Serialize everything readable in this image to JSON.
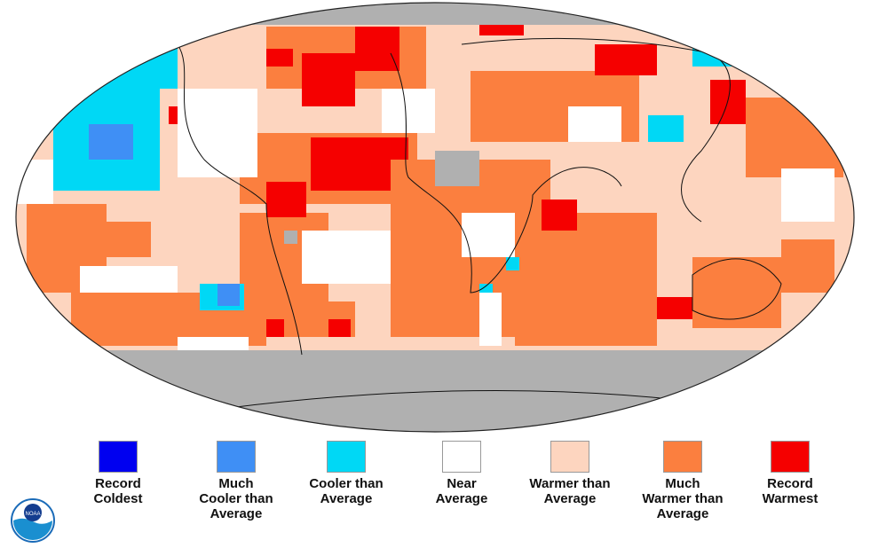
{
  "colors": {
    "record_coldest": "#0000f0",
    "much_cooler": "#3f8ff5",
    "cooler": "#00d8f5",
    "near": "#ffffff",
    "warmer": "#fdd5bf",
    "much_warmer": "#fb7f3f",
    "record_warmest": "#f50000",
    "no_data": "#b0b0b0"
  },
  "legend": [
    {
      "key": "record_coldest",
      "label": "Record\nColdest"
    },
    {
      "key": "much_cooler",
      "label": "Much\nCooler than\nAverage"
    },
    {
      "key": "cooler",
      "label": "Cooler than\nAverage"
    },
    {
      "key": "near",
      "label": "Near\nAverage"
    },
    {
      "key": "warmer",
      "label": "Warmer than\nAverage"
    },
    {
      "key": "much_warmer",
      "label": "Much\nWarmer than\nAverage"
    },
    {
      "key": "record_warmest",
      "label": "Record\nWarmest"
    }
  ],
  "logo": {
    "text": "NOAA",
    "icon": "noaa-logo-icon"
  }
}
